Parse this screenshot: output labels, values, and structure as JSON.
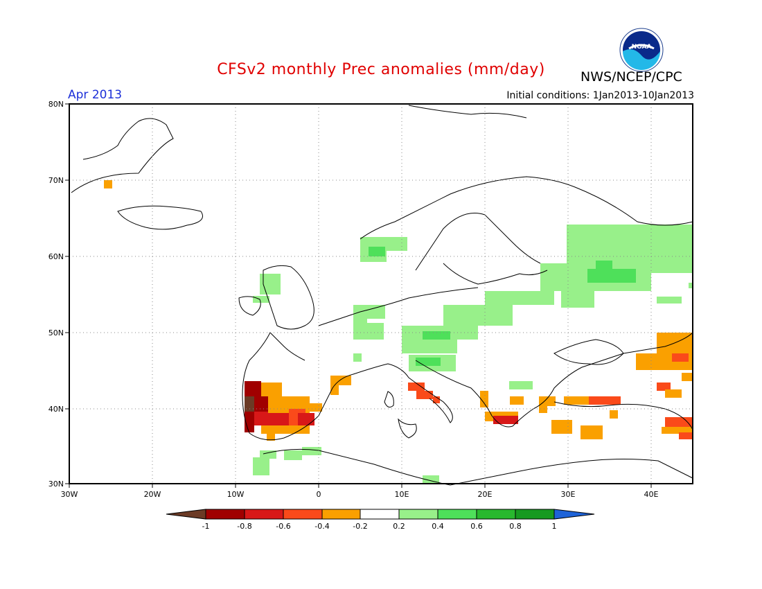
{
  "header": {
    "title": "CFSv2 monthly Prec anomalies (mm/day)",
    "agency": "NWS/NCEP/CPC",
    "month": "Apr 2013",
    "initial_conditions": "Initial conditions: 1Jan2013-10Jan2013",
    "logo_text": "NOAA"
  },
  "axes": {
    "lat_labels": [
      "80N",
      "70N",
      "60N",
      "50N",
      "40N",
      "30N"
    ],
    "lon_labels": [
      "30W",
      "20W",
      "10W",
      "0",
      "10E",
      "20E",
      "30E",
      "40E"
    ]
  },
  "colorbar": {
    "ticks": [
      "-1",
      "-0.8",
      "-0.6",
      "-0.4",
      "-0.2",
      "0.2",
      "0.4",
      "0.6",
      "0.8",
      "1"
    ],
    "colors": {
      "lt_-1": "#6b3a25",
      "-1_-0.8": "#a00000",
      "-0.8_-0.6": "#d81818",
      "-0.6_-0.4": "#fa4a1a",
      "-0.4_-0.2": "#faa000",
      "-0.2_0.2": "#ffffff",
      "0.2_0.4": "#98f08a",
      "0.4_0.6": "#4ee05a",
      "0.6_0.8": "#28b82e",
      "0.8_1": "#169a20",
      "gt_1": "#1e63d8"
    }
  }
}
